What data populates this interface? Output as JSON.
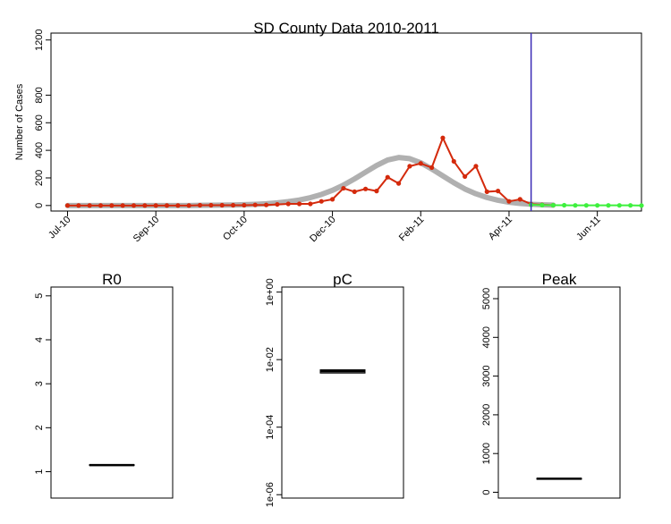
{
  "chart_data": [
    {
      "type": "line",
      "title": "SD County Data 2010-2011",
      "xlabel": "",
      "ylabel": "Number of Cases",
      "ylim": [
        -40,
        1250
      ],
      "yticks": [
        0,
        200,
        400,
        600,
        800,
        1200
      ],
      "xticks": [
        {
          "label": "Jul-10",
          "week": 0
        },
        {
          "label": "Sep-10",
          "week": 8
        },
        {
          "label": "Oct-10",
          "week": 16
        },
        {
          "label": "Dec-10",
          "week": 24
        },
        {
          "label": "Feb-11",
          "week": 32
        },
        {
          "label": "Apr-11",
          "week": 40
        },
        {
          "label": "Jun-11",
          "week": 48
        }
      ],
      "xlim": [
        -1.5,
        52
      ],
      "vline_week": 42,
      "colors": {
        "observed": "#d42a0c",
        "forecast": "#3ef03e",
        "fit": "#b0b0b0",
        "vline": "#3b2bb6"
      },
      "series": [
        {
          "name": "",
          "style": "observed",
          "values": [
            0,
            0,
            0,
            0,
            0,
            0,
            0,
            0,
            0,
            0,
            0,
            0,
            2,
            2,
            2,
            2,
            2,
            4,
            4,
            8,
            12,
            12,
            12,
            30,
            45,
            125,
            100,
            120,
            105,
            205,
            160,
            285,
            305,
            275,
            490,
            320,
            210,
            285,
            100,
            105,
            30,
            45,
            10,
            5,
            2
          ],
          "x_start": 0
        },
        {
          "name": "",
          "style": "forecast",
          "values": [
            5,
            3,
            2,
            2,
            1,
            1,
            1,
            1,
            1,
            1,
            0
          ],
          "x_start": 42
        },
        {
          "name": "",
          "style": "fit",
          "values": [
            0,
            0,
            0,
            0,
            0,
            0,
            0,
            0,
            0,
            0,
            0,
            0,
            1,
            2,
            3,
            4,
            6,
            9,
            13,
            19,
            28,
            40,
            57,
            80,
            110,
            148,
            193,
            242,
            290,
            330,
            348,
            340,
            310,
            265,
            215,
            165,
            120,
            85,
            58,
            38,
            24,
            15,
            9,
            5,
            3
          ],
          "x_start": 0
        }
      ]
    },
    {
      "type": "box",
      "title": "R0",
      "ylim": [
        0.4,
        5.2
      ],
      "yticks": [
        1,
        2,
        3,
        4,
        5
      ],
      "tick_labels": [
        "1",
        "2",
        "3",
        "4",
        "5"
      ],
      "median": 1.15,
      "q1": 1.14,
      "q3": 1.16
    },
    {
      "type": "box",
      "title": "pC",
      "scale": "log",
      "ylim_log10": [
        -6.1,
        0.15
      ],
      "yticks_log10": [
        -6,
        -4,
        -2,
        0
      ],
      "tick_labels": [
        "1e-06",
        "1e-04",
        "1e-02",
        "1e+00"
      ],
      "median": 0.0045,
      "q1": 0.004,
      "q3": 0.005
    },
    {
      "type": "box",
      "title": "Peak",
      "ylim": [
        -150,
        5300
      ],
      "yticks": [
        0,
        1000,
        2000,
        3000,
        4000,
        5000
      ],
      "tick_labels": [
        "0",
        "1000",
        "2000",
        "3000",
        "4000",
        "5000"
      ],
      "median": 350,
      "q1": 340,
      "q3": 360
    }
  ]
}
